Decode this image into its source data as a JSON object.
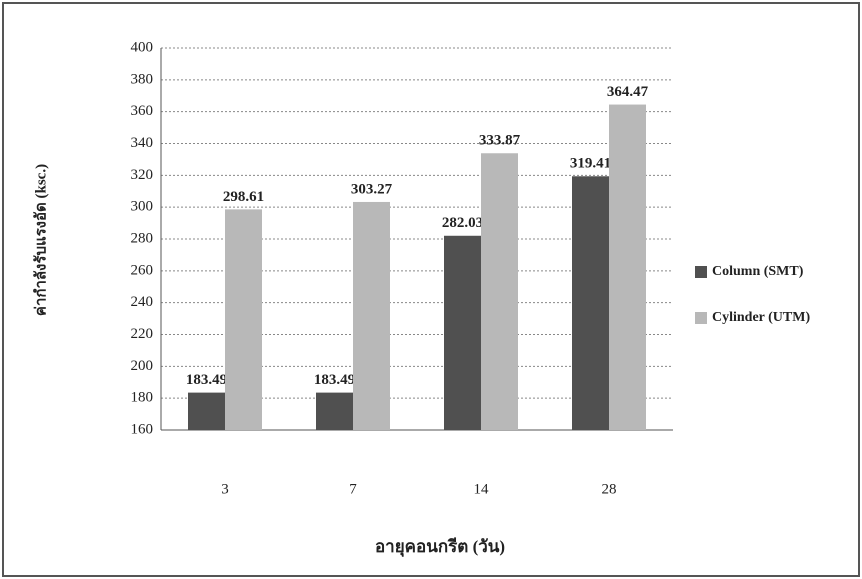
{
  "chart_data": {
    "type": "bar",
    "x_label": "อายุคอนกรีต (วัน)",
    "y_label": "ค่ากำลังรับแรงอัด (ksc.)",
    "categories": [
      "3",
      "7",
      "14",
      "28"
    ],
    "series": [
      {
        "name": "Column (SMT)",
        "color": "#505050",
        "values": [
          183.49,
          183.49,
          282.03,
          319.41
        ]
      },
      {
        "name": "Cylinder (UTM)",
        "color": "#b8b8b8",
        "values": [
          298.61,
          303.27,
          333.87,
          364.47
        ]
      }
    ],
    "ylim": [
      160,
      400
    ],
    "yticks": [
      160,
      180,
      200,
      220,
      240,
      260,
      280,
      300,
      320,
      340,
      360,
      380,
      400
    ],
    "grid": true,
    "legend": "right"
  }
}
